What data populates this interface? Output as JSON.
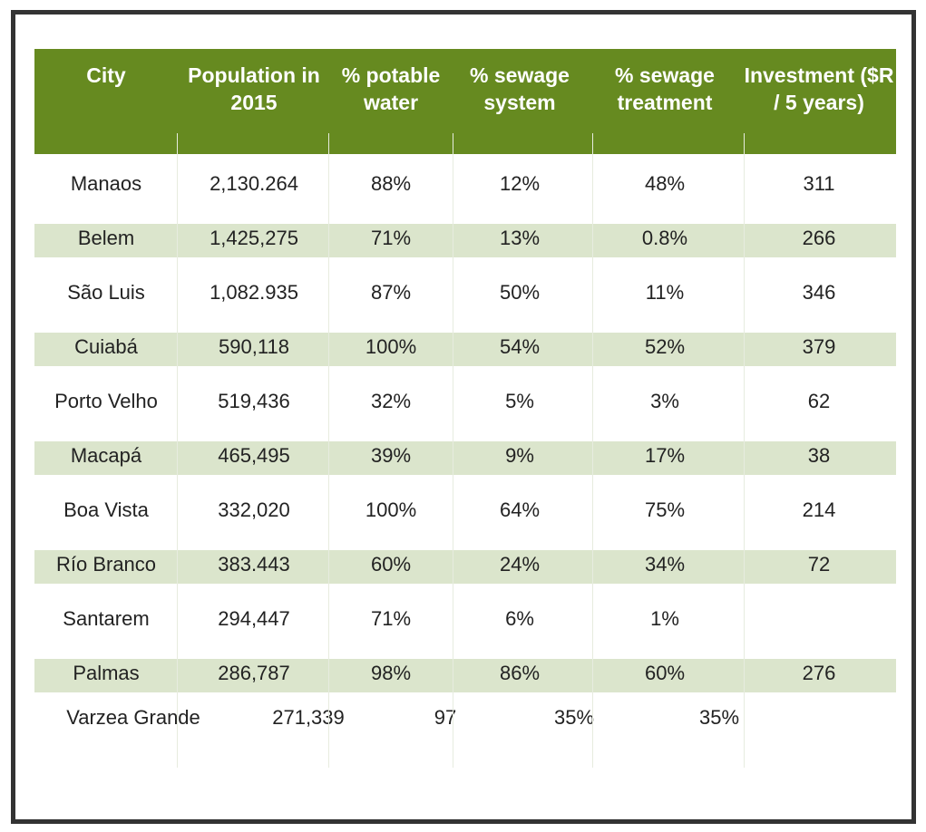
{
  "table": {
    "headers": [
      "City",
      "Population in 2015",
      "% potable water",
      "% sewage system",
      "% sewage treatment",
      "Investment ($R / 5 years)"
    ],
    "rows": [
      [
        "Manaos",
        "2,130.264",
        "88%",
        "12%",
        "48%",
        "311"
      ],
      [
        "Belem",
        "1,425,275",
        "71%",
        "13%",
        "0.8%",
        "266"
      ],
      [
        "São Luis",
        "1,082.935",
        "87%",
        "50%",
        "11%",
        "346"
      ],
      [
        "Cuiabá",
        "590,118",
        "100%",
        "54%",
        "52%",
        "379"
      ],
      [
        "Porto Velho",
        "519,436",
        "32%",
        "5%",
        "3%",
        "62"
      ],
      [
        "Macapá",
        "465,495",
        "39%",
        "9%",
        "17%",
        "38"
      ],
      [
        "Boa Vista",
        "332,020",
        "100%",
        "64%",
        "75%",
        "214"
      ],
      [
        "Río Branco",
        "383.443",
        "60%",
        "24%",
        "34%",
        "72"
      ],
      [
        "Santarem",
        "294,447",
        "71%",
        "6%",
        "1%",
        ""
      ],
      [
        "Palmas",
        "286,787",
        "98%",
        "86%",
        "60%",
        "276"
      ],
      [
        "Varzea Grande",
        "271,339",
        "97",
        "35%",
        "35%",
        ""
      ]
    ]
  },
  "colors": {
    "header_bg": "#668a20",
    "stripe_bg": "#dbe5cc",
    "frame_border": "#333333"
  }
}
